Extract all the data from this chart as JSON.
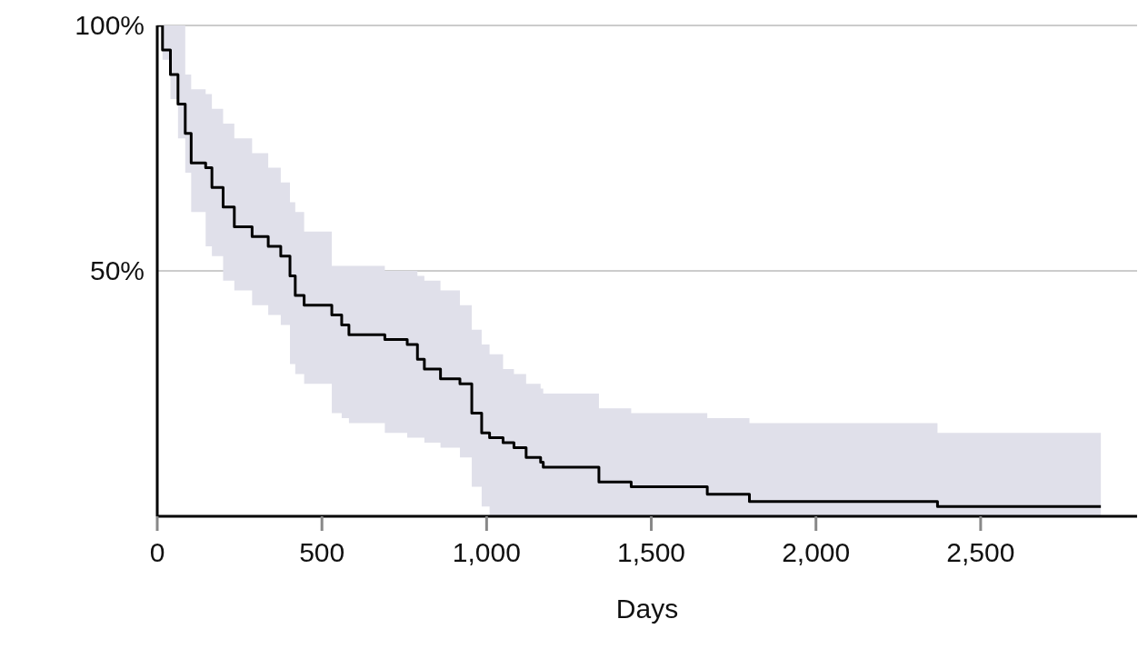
{
  "chart_data": {
    "type": "step",
    "xlabel": "Days",
    "xlim": [
      0,
      2975
    ],
    "xticks": [
      0,
      500,
      {
        "value": 1000,
        "label": "1,000"
      },
      {
        "value": 1500,
        "label": "1,500"
      },
      {
        "value": 2000,
        "label": "2,000"
      },
      {
        "value": 2500,
        "label": "2,500"
      }
    ],
    "ylim": [
      0,
      100
    ],
    "yticks": [
      {
        "value": 50,
        "label": "50%"
      },
      {
        "value": 100,
        "label": "100%"
      }
    ],
    "grid": "y",
    "legend": false,
    "series": [
      {
        "color": "#000000",
        "x": [
          0,
          16,
          40,
          63,
          85,
          103,
          147,
          166,
          200,
          234,
          288,
          337,
          375,
          403,
          419,
          446,
          530,
          560,
          582,
          691,
          759,
          790,
          811,
          860,
          919,
          955,
          985,
          1009,
          1050,
          1083,
          1120,
          1164,
          1172,
          1341,
          1439,
          1670,
          1798,
          2369,
          2865
        ],
        "values": [
          100,
          95,
          90,
          84,
          78,
          72,
          71,
          67,
          63,
          59,
          57,
          55,
          53,
          49,
          45,
          43,
          41,
          39,
          37,
          36,
          35,
          32,
          30,
          28,
          27,
          21,
          17,
          16,
          15,
          14,
          12,
          11,
          10,
          7,
          6,
          4.5,
          3,
          2,
          2
        ],
        "lower": [
          100,
          93,
          85,
          77,
          70,
          62,
          55,
          53,
          48,
          46,
          43,
          41,
          39,
          31,
          29,
          27,
          21,
          20,
          19,
          17,
          16,
          16,
          15,
          14,
          12,
          6,
          2,
          0,
          0,
          0,
          0,
          0,
          0,
          0,
          0,
          0,
          0,
          0,
          0
        ],
        "upper": [
          100,
          100,
          100,
          100,
          90,
          87,
          86,
          83,
          80,
          77,
          74,
          71,
          68,
          64,
          62,
          58,
          51,
          51,
          51,
          50,
          50,
          49,
          48,
          46,
          43,
          38,
          35,
          33,
          30,
          29,
          27,
          26,
          25,
          22,
          21,
          20,
          19,
          17,
          17
        ]
      }
    ]
  }
}
